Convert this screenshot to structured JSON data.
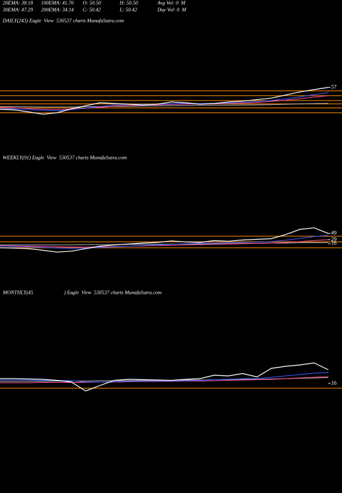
{
  "header": {
    "rows": [
      [
        "20EMA: 38.18",
        "100EMA: 41.76",
        "O: 50.50",
        "H: 50.50",
        "Avg Vol: 0  M"
      ],
      [
        "30EMA: 47.29",
        "200EMA: 34.14",
        "C: 50.42",
        "L: 50.42",
        "Day Vol: 0  M"
      ]
    ]
  },
  "chart_data": [
    {
      "type": "line",
      "title": "DAILY(243) Eagle  View  530537 charts MunafaSutra.com",
      "categories": [
        null,
        null,
        null,
        null,
        null,
        null,
        null,
        null,
        null,
        null,
        null,
        null,
        null,
        null,
        null,
        null,
        null,
        null,
        null,
        null,
        null,
        null,
        null,
        null
      ],
      "ylim": [
        18,
        105
      ],
      "yticks": [
        57
      ],
      "levels": [
        54.7,
        51.6,
        48.4,
        46.2,
        43.6,
        40.4
      ],
      "level_color": "#ff8c00",
      "series": [
        {
          "color": "#b0b0b0",
          "values": [
            44.5,
            44.5,
            44.4,
            44.3,
            44.3,
            44.3,
            44.4,
            44.5,
            44.6,
            44.7,
            44.8,
            44.9,
            45,
            45.1,
            45.2,
            45.3,
            45.4,
            45.5,
            45.6,
            45.8,
            46,
            46.2,
            46.4,
            46.6
          ]
        },
        {
          "color": "#ff4f9a",
          "values": [
            44,
            43.8,
            43.2,
            42.8,
            42.6,
            42.8,
            43.4,
            44,
            44.8,
            45.2,
            45.5,
            45.6,
            45.9,
            46.1,
            46.2,
            46.3,
            46.5,
            46.8,
            47.2,
            47.8,
            48.6,
            49.6,
            50.6,
            51.6
          ]
        },
        {
          "color": "#3a5bff",
          "values": [
            43,
            43,
            42.5,
            42,
            41.8,
            42.5,
            43.5,
            44.5,
            45.5,
            46,
            46,
            46,
            46.3,
            46.5,
            46.5,
            46.5,
            46.8,
            47.2,
            47.8,
            48.5,
            49.5,
            50.8,
            52.2,
            53.5
          ]
        },
        {
          "color": "#ffffff",
          "values": [
            42.7,
            42.3,
            41,
            39.5,
            40.5,
            43,
            45,
            47,
            46.5,
            46,
            45.5,
            46,
            47.5,
            47,
            46,
            46.5,
            47.5,
            48,
            49,
            50,
            52,
            54,
            55.5,
            57
          ]
        }
      ]
    },
    {
      "type": "line",
      "title": "WEEKLY(91) Eagle  View  530537 charts MunafaSutra.com",
      "categories": [
        null,
        null,
        null,
        null,
        null,
        null,
        null,
        null,
        null,
        null,
        null,
        null,
        null,
        null,
        null,
        null,
        null,
        null,
        null,
        null,
        null,
        null,
        null,
        null
      ],
      "ylim": [
        -169,
        304
      ],
      "yticks": [
        49,
        29,
        16
      ],
      "levels": [
        40,
        22,
        3
      ],
      "level_color": "#ff8c00",
      "series": [
        {
          "color": "#b0b0b0",
          "values": [
            12,
            12,
            12,
            12,
            12,
            12,
            13,
            13,
            13,
            14,
            14,
            14,
            15,
            15,
            15,
            16,
            16,
            17,
            17,
            18,
            18,
            19,
            19,
            20
          ]
        },
        {
          "color": "#ff4f9a",
          "values": [
            10,
            9,
            8,
            7,
            6,
            5,
            5,
            6,
            7,
            8,
            9,
            10,
            11,
            12,
            13,
            14,
            15,
            16,
            17,
            18,
            20,
            23,
            26,
            29
          ]
        },
        {
          "color": "#3a5bff",
          "values": [
            8,
            7,
            6,
            4,
            2,
            1,
            2,
            4,
            6,
            8,
            10,
            12,
            14,
            16,
            17,
            18,
            19,
            20,
            21,
            23,
            27,
            33,
            39,
            43
          ]
        },
        {
          "color": "#ffffff",
          "values": [
            3,
            2,
            0,
            -5,
            -11,
            -8,
            0,
            8,
            12,
            15,
            18,
            20,
            25,
            22,
            20,
            26,
            24,
            28,
            30,
            32,
            45,
            62,
            67,
            49
          ]
        }
      ]
    },
    {
      "type": "line",
      "title": "MONTHLY(45                        ) Eagle  View  530537 charts MunafaSutra.com",
      "categories": [
        null,
        null,
        null,
        null,
        null,
        null,
        null,
        null,
        null,
        null,
        null,
        null,
        null,
        null,
        null,
        null,
        null,
        null,
        null,
        null,
        null,
        null,
        null,
        null
      ],
      "ylim": [
        -264,
        236
      ],
      "yticks": [
        16
      ],
      "levels": [
        2
      ],
      "level_color": "#ff8c00",
      "series": [
        {
          "color": "#b0b0b0",
          "values": [
            22,
            22,
            22,
            22,
            23,
            23,
            23,
            24,
            24,
            24,
            25,
            25,
            25,
            26,
            26,
            27,
            27,
            28,
            28,
            29,
            30,
            31,
            32,
            33
          ]
        },
        {
          "color": "#ff4f9a",
          "values": [
            18,
            18,
            18,
            19,
            19,
            19,
            19,
            20,
            20,
            21,
            21,
            22,
            22,
            23,
            23,
            24,
            25,
            26,
            27,
            28,
            30,
            32,
            34,
            36
          ]
        },
        {
          "color": "#3a5bff",
          "values": [
            26,
            26,
            26,
            25,
            25,
            24,
            20,
            20,
            21,
            22,
            22,
            23,
            23,
            24,
            25,
            27,
            28,
            30,
            30,
            34,
            38,
            42,
            46,
            48
          ]
        },
        {
          "color": "#ffffff",
          "values": [
            30,
            30,
            29,
            28,
            25,
            20,
            -6,
            10,
            25,
            28,
            27,
            26,
            25,
            28,
            30,
            40,
            38,
            45,
            35,
            60,
            66,
            70,
            76,
            56
          ]
        }
      ]
    }
  ]
}
